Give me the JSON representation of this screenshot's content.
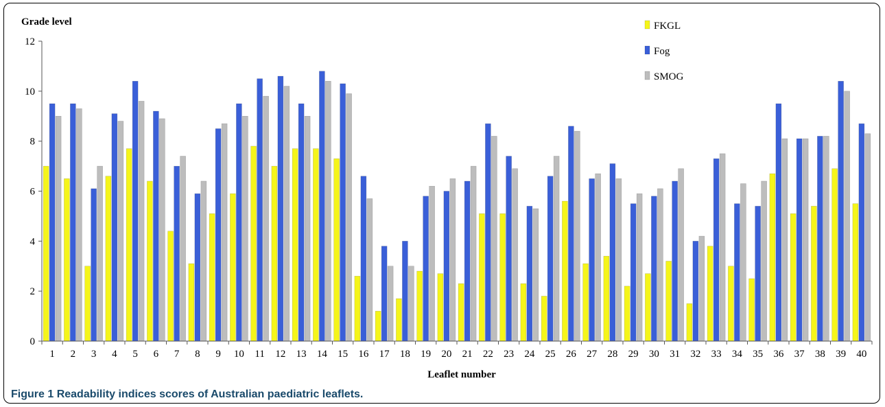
{
  "chart_data": {
    "type": "bar",
    "title": "",
    "ylabel": "Grade level",
    "xlabel": "Leaflet number",
    "ylim": [
      0,
      12
    ],
    "yticks": [
      0,
      2,
      4,
      6,
      8,
      10,
      12
    ],
    "grid": false,
    "legend_position": "top-right",
    "categories": [
      "1",
      "2",
      "3",
      "4",
      "5",
      "6",
      "7",
      "8",
      "9",
      "10",
      "11",
      "12",
      "13",
      "14",
      "15",
      "16",
      "17",
      "18",
      "19",
      "20",
      "21",
      "22",
      "23",
      "24",
      "25",
      "26",
      "27",
      "28",
      "29",
      "30",
      "31",
      "32",
      "33",
      "34",
      "35",
      "36",
      "37",
      "38",
      "39",
      "40"
    ],
    "series": [
      {
        "name": "FKGL",
        "color": "#f5f51a",
        "values": [
          7.0,
          6.5,
          3.0,
          6.6,
          7.7,
          6.4,
          4.4,
          3.1,
          5.1,
          5.9,
          7.8,
          7.0,
          7.7,
          7.7,
          7.3,
          2.6,
          1.2,
          1.7,
          2.8,
          2.7,
          2.3,
          5.1,
          5.1,
          2.3,
          1.8,
          5.6,
          3.1,
          3.4,
          2.2,
          2.7,
          3.2,
          1.5,
          3.8,
          3.0,
          2.5,
          6.7,
          5.1,
          5.4,
          6.9,
          5.5
        ]
      },
      {
        "name": "Fog",
        "color": "#3a5fd8",
        "values": [
          9.5,
          9.5,
          6.1,
          9.1,
          10.4,
          9.2,
          7.0,
          5.9,
          8.5,
          9.5,
          10.5,
          10.6,
          9.5,
          10.8,
          10.3,
          6.6,
          3.8,
          4.0,
          5.8,
          6.0,
          6.4,
          8.7,
          7.4,
          5.4,
          6.6,
          8.6,
          6.5,
          7.1,
          5.5,
          5.8,
          6.4,
          4.0,
          7.3,
          5.5,
          5.4,
          9.5,
          8.1,
          8.2,
          10.4,
          8.7
        ]
      },
      {
        "name": "SMOG",
        "color": "#bdbdbd",
        "values": [
          9.0,
          9.3,
          7.0,
          8.8,
          9.6,
          8.9,
          7.4,
          6.4,
          8.7,
          9.0,
          9.8,
          10.2,
          9.0,
          10.4,
          9.9,
          5.7,
          3.0,
          3.0,
          6.2,
          6.5,
          7.0,
          8.2,
          6.9,
          5.3,
          7.4,
          8.4,
          6.7,
          6.5,
          5.9,
          6.1,
          6.9,
          4.2,
          7.5,
          6.3,
          6.4,
          8.1,
          8.1,
          8.2,
          10.0,
          8.3
        ]
      }
    ]
  },
  "caption": {
    "label": "Figure 1",
    "text": "Readability indices scores of Australian paediatric leaflets."
  }
}
